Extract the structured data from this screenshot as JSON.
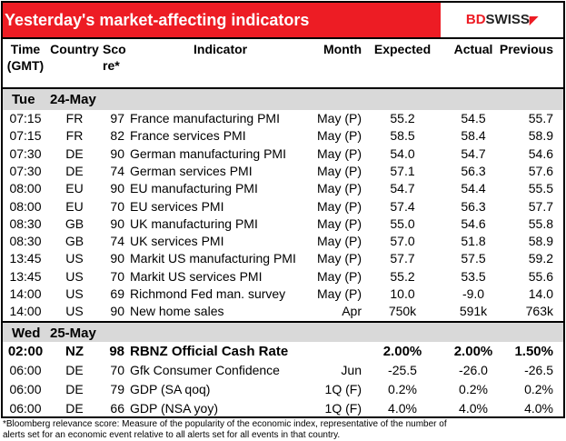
{
  "title": "Yesterday's market-affecting indicators",
  "logo": {
    "part1": "BD",
    "part2": "SWISS",
    "mark": "◤"
  },
  "colors": {
    "title_bg": "#ED1C24",
    "day_bg": "#D9D9D9"
  },
  "headers": {
    "time": "Time",
    "time2": "(GMT)",
    "country": "Country",
    "score": "Sco",
    "score2": "re*",
    "indicator": "Indicator",
    "month": "Month",
    "expected": "Expected",
    "actual": "Actual",
    "previous": "Previous"
  },
  "days": [
    {
      "day": "Tue",
      "date": "24-May",
      "rows": [
        {
          "time": "07:15",
          "country": "FR",
          "score": "97",
          "indicator": "France manufacturing PMI",
          "month": "May (P)",
          "expected": "55.2",
          "actual": "54.5",
          "previous": "55.7"
        },
        {
          "time": "07:15",
          "country": "FR",
          "score": "82",
          "indicator": "France services PMI",
          "month": "May (P)",
          "expected": "58.5",
          "actual": "58.4",
          "previous": "58.9"
        },
        {
          "time": "07:30",
          "country": "DE",
          "score": "90",
          "indicator": "German manufacturing PMI",
          "month": "May (P)",
          "expected": "54.0",
          "actual": "54.7",
          "previous": "54.6"
        },
        {
          "time": "07:30",
          "country": "DE",
          "score": "74",
          "indicator": "German services PMI",
          "month": "May (P)",
          "expected": "57.1",
          "actual": "56.3",
          "previous": "57.6"
        },
        {
          "time": "08:00",
          "country": "EU",
          "score": "90",
          "indicator": "EU manufacturing PMI",
          "month": "May (P)",
          "expected": "54.7",
          "actual": "54.4",
          "previous": "55.5"
        },
        {
          "time": "08:00",
          "country": "EU",
          "score": "70",
          "indicator": "EU services PMI",
          "month": "May (P)",
          "expected": "57.4",
          "actual": "56.3",
          "previous": "57.7"
        },
        {
          "time": "08:30",
          "country": "GB",
          "score": "90",
          "indicator": "UK manufacturing PMI",
          "month": "May (P)",
          "expected": "55.0",
          "actual": "54.6",
          "previous": "55.8"
        },
        {
          "time": "08:30",
          "country": "GB",
          "score": "74",
          "indicator": "UK services PMI",
          "month": "May (P)",
          "expected": "57.0",
          "actual": "51.8",
          "previous": "58.9"
        },
        {
          "time": "13:45",
          "country": "US",
          "score": "90",
          "indicator": "Markit US manufacturing PMI",
          "month": "May (P)",
          "expected": "57.7",
          "actual": "57.5",
          "previous": "59.2"
        },
        {
          "time": "13:45",
          "country": "US",
          "score": "70",
          "indicator": "Markit US services PMI",
          "month": "May (P)",
          "expected": "55.2",
          "actual": "53.5",
          "previous": "55.6"
        },
        {
          "time": "14:00",
          "country": "US",
          "score": "69",
          "indicator": "Richmond Fed man. survey",
          "month": "May (P)",
          "expected": "10.0",
          "actual": "-9.0",
          "previous": "14.0"
        },
        {
          "time": "14:00",
          "country": "US",
          "score": "90",
          "indicator": "New home sales",
          "month": "Apr",
          "expected": "750k",
          "actual": "591k",
          "previous": "763k"
        }
      ]
    },
    {
      "day": "Wed",
      "date": "25-May",
      "rows": [
        {
          "time": "02:00",
          "country": "NZ",
          "score": "98",
          "indicator": "RBNZ Official Cash Rate",
          "month": "",
          "expected": "2.00%",
          "actual": "2.00%",
          "previous": "1.50%",
          "bold": true
        },
        {
          "time": "06:00",
          "country": "DE",
          "score": "70",
          "indicator": "Gfk Consumer Confidence",
          "month": "Jun",
          "expected": "-25.5",
          "actual": "-26.0",
          "previous": "-26.5"
        },
        {
          "time": "06:00",
          "country": "DE",
          "score": "79",
          "indicator": "GDP (SA qoq)",
          "month": "1Q (F)",
          "expected": "0.2%",
          "actual": "0.2%",
          "previous": "0.2%"
        },
        {
          "time": "06:00",
          "country": "DE",
          "score": "66",
          "indicator": "GDP (NSA yoy)",
          "month": "1Q (F)",
          "expected": "4.0%",
          "actual": "4.0%",
          "previous": "4.0%"
        }
      ]
    }
  ],
  "footnote": {
    "line1": "*Bloomberg relevance score:  Measure of the popularity of the economic index, representative of the number of",
    "line2": "alerts set for an economic event relative to all alerts set for all events in that country."
  }
}
